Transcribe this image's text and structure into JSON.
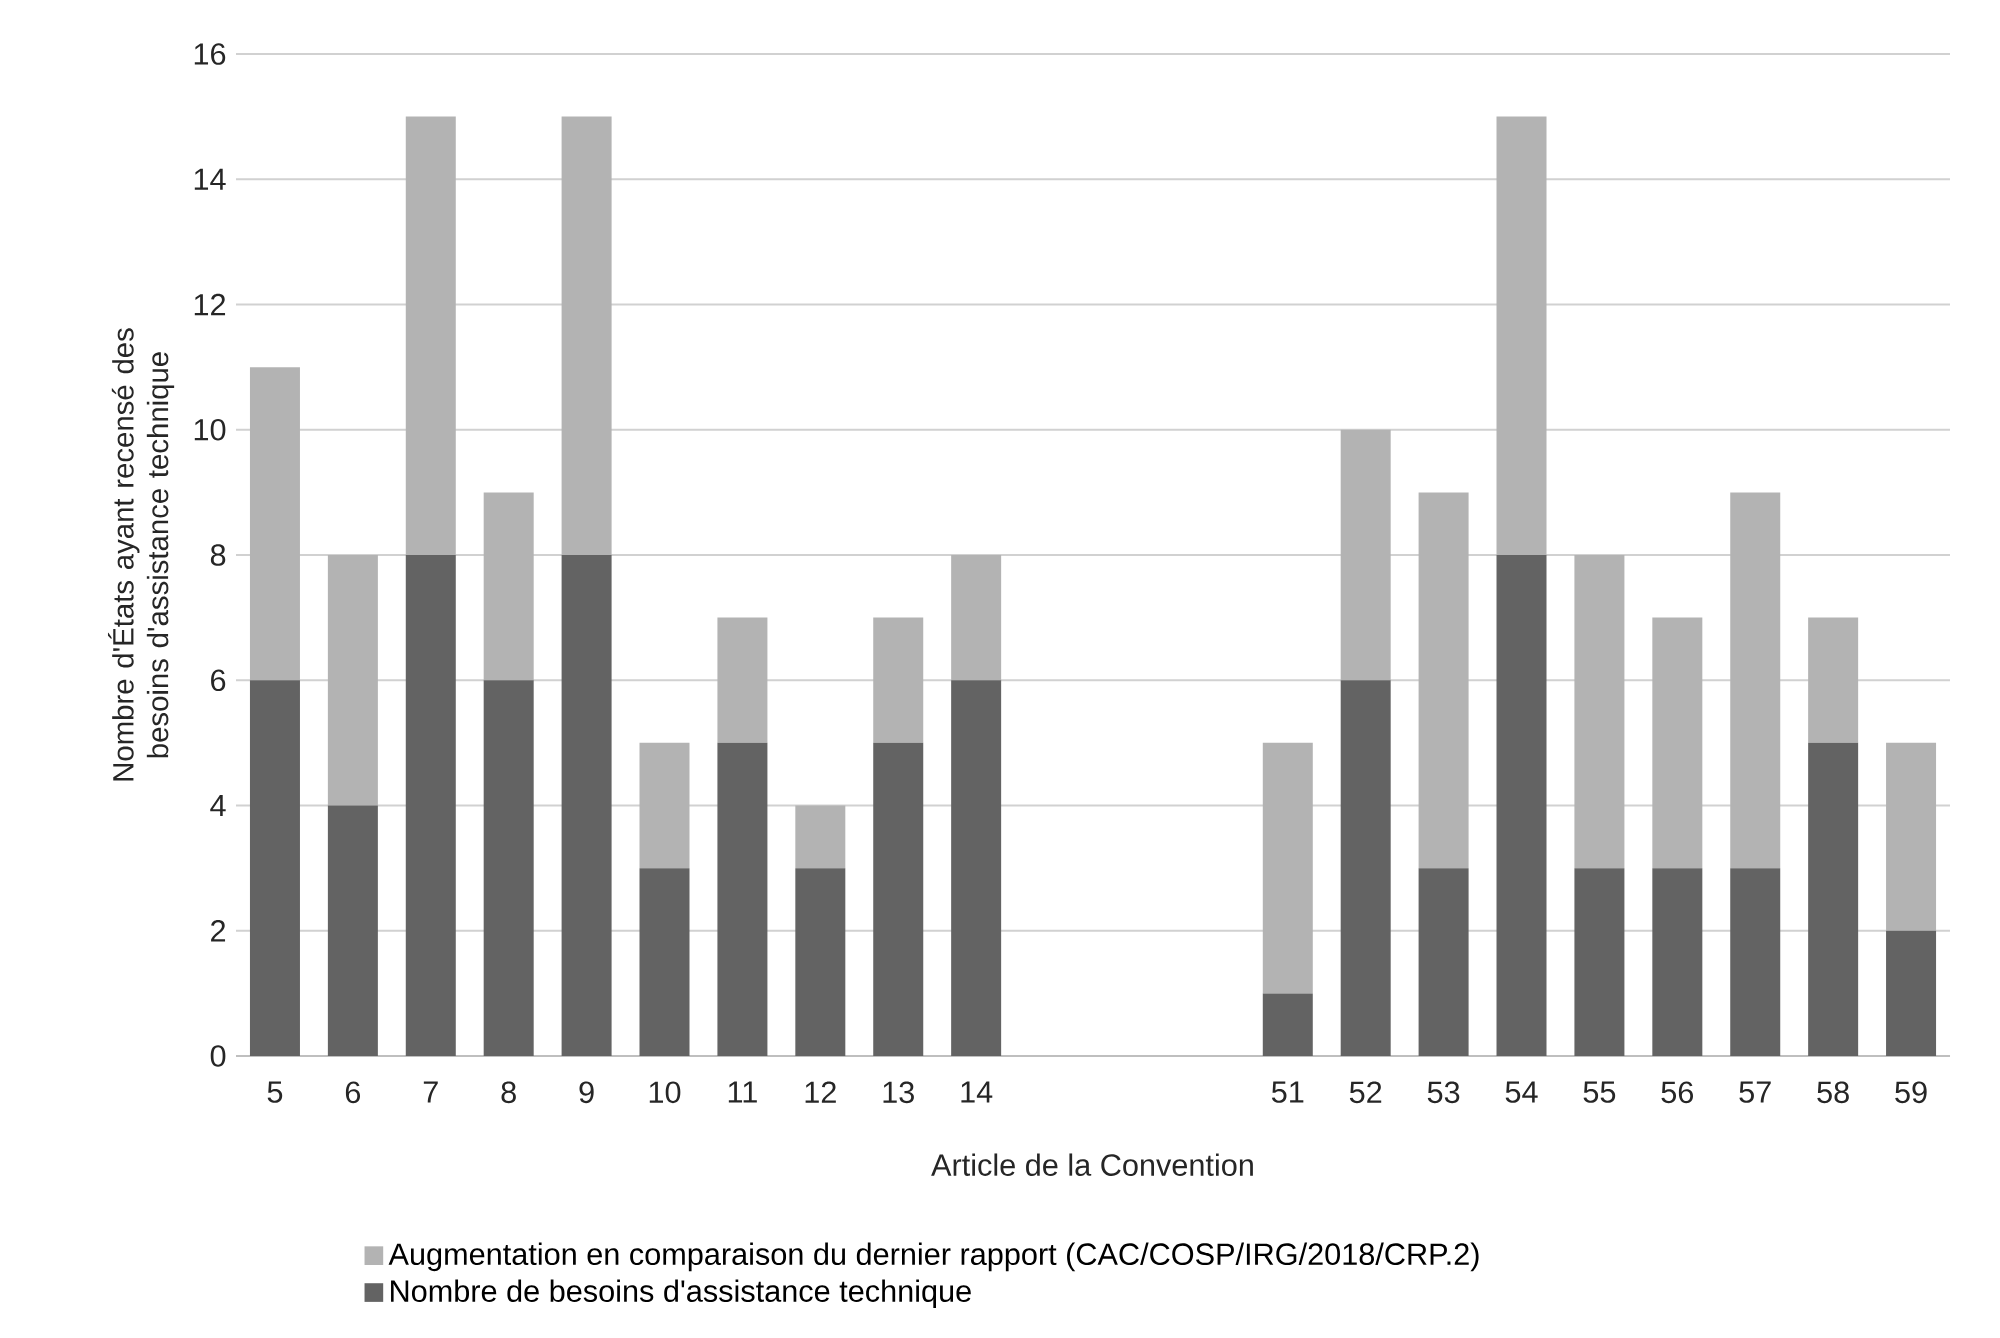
{
  "chart_data": {
    "type": "bar",
    "stacked": true,
    "xlabel": "Article de la Convention",
    "ylabel": "Nombre d'États ayant recensé des besoins d'assistance technique",
    "categories": [
      "5",
      "6",
      "7",
      "8",
      "9",
      "10",
      "11",
      "12",
      "13",
      "14",
      null,
      null,
      null,
      "51",
      "52",
      "53",
      "54",
      "55",
      "56",
      "57",
      "58",
      "59"
    ],
    "series": [
      {
        "name": "Nombre de besoins d'assistance technique",
        "color": "#636363",
        "values": [
          6,
          4,
          8,
          6,
          8,
          3,
          5,
          3,
          5,
          6,
          null,
          null,
          null,
          1,
          6,
          3,
          8,
          3,
          3,
          3,
          5,
          2
        ]
      },
      {
        "name": "Augmentation en comparaison du dernier rapport (CAC/COSP/IRG/2018/CRP.2)",
        "color": "#b3b3b3",
        "values": [
          5,
          4,
          7,
          3,
          7,
          2,
          2,
          1,
          2,
          2,
          null,
          null,
          null,
          4,
          4,
          6,
          7,
          5,
          4,
          6,
          2,
          3
        ]
      }
    ],
    "ylim": [
      0,
      16
    ],
    "yticks": [
      0,
      2,
      4,
      6,
      8,
      10,
      12,
      14,
      16
    ],
    "grid": "y",
    "legend": "bottom"
  }
}
